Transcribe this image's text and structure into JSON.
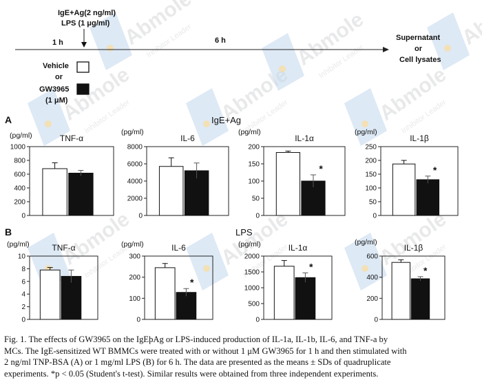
{
  "timeline": {
    "treatment": "IgE+Ag(2 ng/ml)\nLPS (1 μg/ml)",
    "pre_label": "1 h",
    "main_label": "6 h",
    "endpoint": "Supernatant\nor\nCell lysates",
    "vehicle_label": "Vehicle\nor",
    "gw_label": "GW3965\n(1 μM)"
  },
  "panels": [
    {
      "letter": "A",
      "title": "IgE+Ag"
    },
    {
      "letter": "B",
      "title": "LPS"
    }
  ],
  "colors": {
    "vehicle": "#ffffff",
    "gw3965": "#111111",
    "axis": "#222222"
  },
  "watermark": {
    "brand": "Abmole",
    "sub": "Inhibitor Leader"
  },
  "chart_data": [
    {
      "id": "A1",
      "type": "bar",
      "panel": "A",
      "title": "TNF-α",
      "ylabel": "(pg/ml)",
      "ylim": [
        0,
        1000
      ],
      "yticks": [
        0,
        200,
        400,
        600,
        800,
        1000
      ],
      "categories": [
        "Vehicle",
        "GW3965"
      ],
      "values": [
        680,
        615
      ],
      "errors": [
        85,
        40
      ],
      "significance": [
        "",
        ""
      ]
    },
    {
      "id": "A2",
      "type": "bar",
      "panel": "A",
      "title": "IL-6",
      "ylabel": "(pg/ml)",
      "ylim": [
        0,
        8000
      ],
      "yticks": [
        0,
        2000,
        4000,
        6000,
        8000
      ],
      "categories": [
        "Vehicle",
        "GW3965"
      ],
      "values": [
        5700,
        5200
      ],
      "errors": [
        1000,
        900
      ],
      "significance": [
        "",
        ""
      ]
    },
    {
      "id": "A3",
      "type": "bar",
      "panel": "A",
      "title": "IL-1α",
      "ylabel": "(pg/ml)",
      "ylim": [
        0,
        200
      ],
      "yticks": [
        0,
        50,
        100,
        150,
        200
      ],
      "categories": [
        "Vehicle",
        "GW3965"
      ],
      "values": [
        183,
        100
      ],
      "errors": [
        4,
        18
      ],
      "significance": [
        "",
        "*"
      ]
    },
    {
      "id": "A4",
      "type": "bar",
      "panel": "A",
      "title": "IL-1β",
      "ylabel": "(pg/ml)",
      "ylim": [
        0,
        250
      ],
      "yticks": [
        0,
        50,
        100,
        150,
        200,
        250
      ],
      "categories": [
        "Vehicle",
        "GW3965"
      ],
      "values": [
        187,
        130
      ],
      "errors": [
        13,
        13
      ],
      "significance": [
        "",
        "*"
      ]
    },
    {
      "id": "B1",
      "type": "bar",
      "panel": "B",
      "title": "TNF-α",
      "ylabel": "(pg/ml)",
      "ylim": [
        0,
        10
      ],
      "yticks": [
        0,
        2,
        4,
        6,
        8,
        10
      ],
      "categories": [
        "Vehicle",
        "GW3965"
      ],
      "values": [
        7.8,
        6.8
      ],
      "errors": [
        0.4,
        1.0
      ],
      "significance": [
        "",
        ""
      ]
    },
    {
      "id": "B2",
      "type": "bar",
      "panel": "B",
      "title": "IL-6",
      "ylabel": "(pg/ml)",
      "ylim": [
        0,
        300
      ],
      "yticks": [
        0,
        100,
        200,
        300
      ],
      "categories": [
        "Vehicle",
        "GW3965"
      ],
      "values": [
        245,
        128
      ],
      "errors": [
        20,
        18
      ],
      "significance": [
        "",
        "*"
      ]
    },
    {
      "id": "B3",
      "type": "bar",
      "panel": "B",
      "title": "IL-1α",
      "ylabel": "(pg/ml)",
      "ylim": [
        0,
        2000
      ],
      "yticks": [
        0,
        500,
        1000,
        1500,
        2000
      ],
      "categories": [
        "Vehicle",
        "GW3965"
      ],
      "values": [
        1680,
        1320
      ],
      "errors": [
        180,
        150
      ],
      "significance": [
        "",
        "*"
      ]
    },
    {
      "id": "B4",
      "type": "bar",
      "panel": "B",
      "title": "IL-1β",
      "ylabel": "(pg/ml)",
      "ylim": [
        0,
        600
      ],
      "yticks": [
        0,
        200,
        400,
        600
      ],
      "categories": [
        "Vehicle",
        "GW3965"
      ],
      "values": [
        540,
        385
      ],
      "errors": [
        25,
        20
      ],
      "significance": [
        "",
        "*"
      ]
    }
  ],
  "caption": [
    "Fig. 1. The effects of GW3965 on the IgEþAg or LPS-induced production of IL-1a, IL-1b, IL-6, and TNF-a by",
    "MCs. The IgE-sensitized WT BMMCs were treated with or without 1 μM GW3965 for 1 h and then stimulated with",
    "2 ng/ml TNP-BSA (A) or 1 mg/ml LPS (B) for 6 h. The data are presented as the means ± SDs of quadruplicate",
    "experiments. *p < 0.05 (Student's t-test). Similar results were obtained from three independent experiments."
  ]
}
